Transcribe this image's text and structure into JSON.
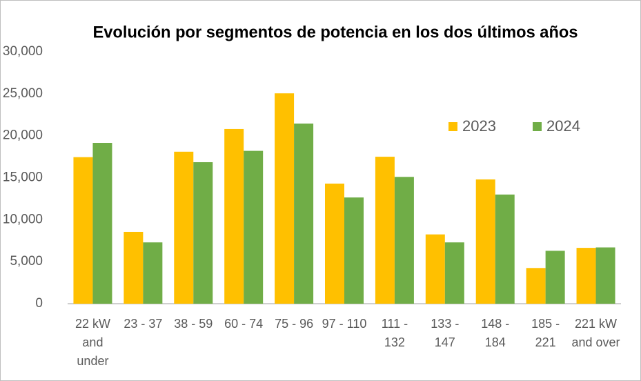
{
  "chart_data": {
    "type": "bar",
    "title": "Evolución por segmentos de potencia en los dos últimos años",
    "categories": [
      "22 kW and under",
      "23 - 37",
      "38 - 59",
      "60 - 74",
      "75 - 96",
      "97 - 110",
      "111 - 132",
      "133 - 147",
      "148 - 184",
      "185 - 221",
      "221 kW and over"
    ],
    "series": [
      {
        "name": "2023",
        "color": "#ffc000",
        "values": [
          17450,
          8550,
          18100,
          20800,
          25050,
          14300,
          17500,
          8250,
          14800,
          4250,
          6650
        ]
      },
      {
        "name": "2024",
        "color": "#70ad47",
        "values": [
          19150,
          7300,
          16850,
          18200,
          21450,
          12650,
          15100,
          7300,
          13000,
          6300,
          6700
        ]
      }
    ],
    "ylim": [
      0,
      30000
    ],
    "yticks": [
      0,
      {
        "value": 5000,
        "label": "5,000"
      },
      {
        "value": 10000,
        "label": "10,000"
      },
      {
        "value": 15000,
        "label": "15,000"
      },
      {
        "value": 20000,
        "label": "20,000"
      },
      {
        "value": 25000,
        "label": "25,000"
      },
      {
        "value": 30000,
        "label": "30,000"
      }
    ],
    "grid": false,
    "legend": "upper right"
  }
}
